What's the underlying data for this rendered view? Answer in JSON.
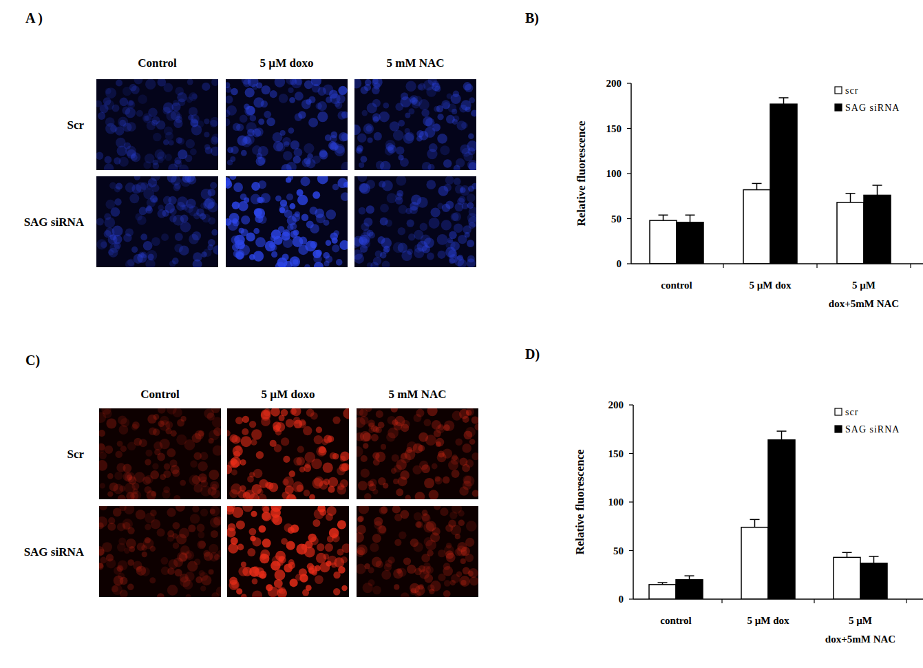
{
  "panel_labels": [
    "A )",
    "B)",
    "C)",
    "D)"
  ],
  "image_panels": [
    {
      "columns": [
        "Control",
        "5 µM doxo",
        "5 mM NAC"
      ],
      "rows": [
        "Scr",
        "SAG siRNA"
      ]
    },
    {
      "columns": [
        "Control",
        "5 µM doxo",
        "5 mM NAC"
      ],
      "rows": [
        "Scr",
        "SAG siRNA"
      ]
    }
  ],
  "chart_data": [
    {
      "type": "bar",
      "y_label": "Relative fluorescence",
      "categories": [
        "control",
        "5 µM dox",
        "5 µM\ndox+5mM NAC"
      ],
      "series": [
        {
          "name": "scr",
          "color": "#ffffff",
          "values": [
            48,
            82,
            68
          ],
          "errors": [
            6,
            7,
            10
          ]
        },
        {
          "name": "SAG siRNA",
          "color": "#000000",
          "values": [
            46,
            177,
            76
          ],
          "errors": [
            8,
            7,
            11
          ]
        }
      ],
      "ylim": [
        0,
        200
      ],
      "yticks": [
        0,
        50,
        100,
        150,
        200
      ],
      "grid": false,
      "legend": "top-right"
    },
    {
      "type": "bar",
      "y_label": "Relative fluorescence",
      "categories": [
        "control",
        "5 µM dox",
        "5 µM\ndox+5mM NAC"
      ],
      "series": [
        {
          "name": "scr",
          "color": "#ffffff",
          "values": [
            15,
            74,
            43
          ],
          "errors": [
            2,
            8,
            5
          ]
        },
        {
          "name": "SAG siRNA",
          "color": "#000000",
          "values": [
            20,
            164,
            37
          ],
          "errors": [
            4,
            9,
            7
          ]
        }
      ],
      "ylim": [
        0,
        200
      ],
      "yticks": [
        0,
        50,
        100,
        150,
        200
      ],
      "grid": false,
      "legend": "top-right"
    }
  ]
}
